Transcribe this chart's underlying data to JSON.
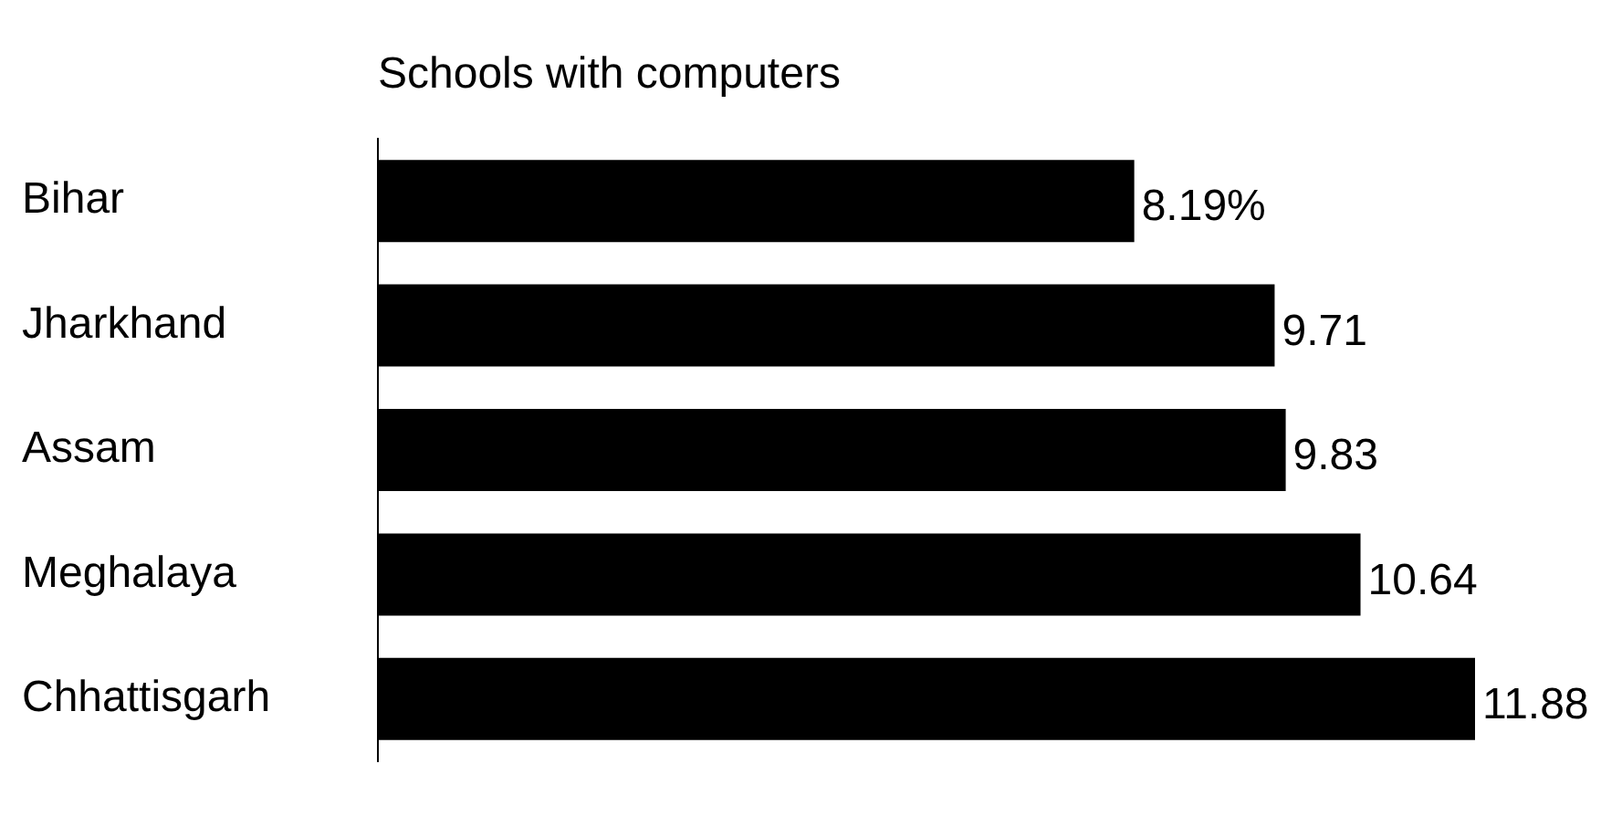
{
  "chart_data": {
    "type": "bar",
    "orientation": "horizontal",
    "title": "Schools with computers",
    "categories": [
      "Bihar",
      "Jharkhand",
      "Assam",
      "Meghalaya",
      "Chhattisgarh"
    ],
    "values": [
      8.19,
      9.71,
      9.83,
      10.64,
      11.88
    ],
    "value_labels": [
      "8.19%",
      "9.71",
      "9.83",
      "10.64",
      "11.88"
    ],
    "color": "#000000"
  }
}
